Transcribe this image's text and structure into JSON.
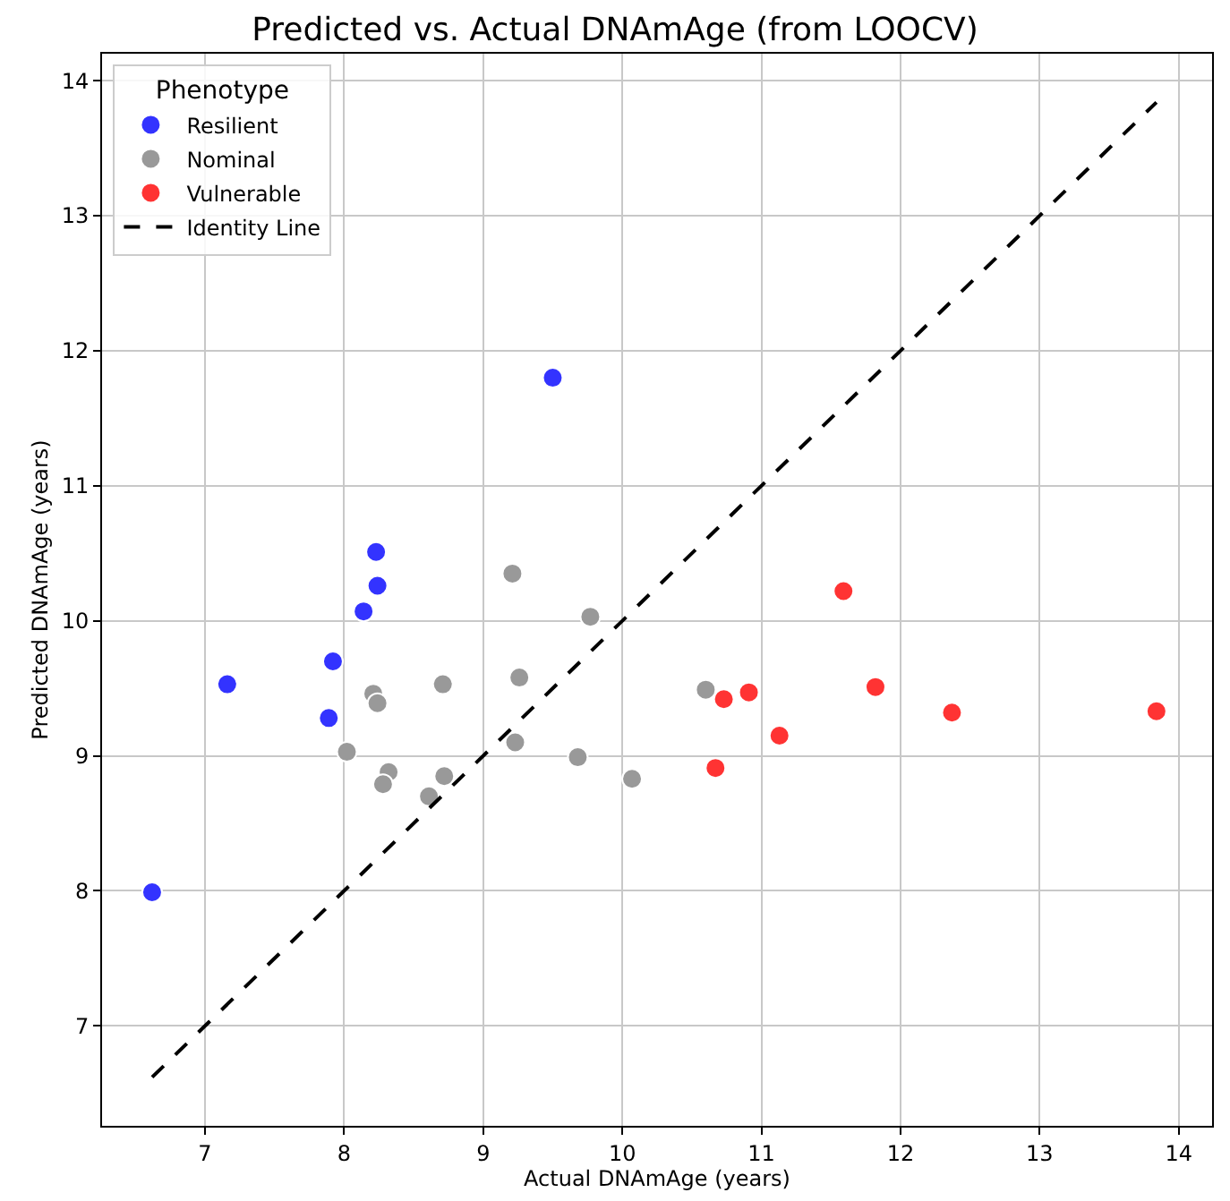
{
  "chart_data": {
    "type": "scatter",
    "title": "Predicted vs. Actual DNAmAge (from LOOCV)",
    "xlabel": "Actual DNAmAge (years)",
    "ylabel": "Predicted DNAmAge (years)",
    "legend_title": "Phenotype",
    "series": [
      {
        "name": "Resilient",
        "color": "#3333ff",
        "x": [
          6.62,
          7.16,
          7.92,
          7.89,
          8.14,
          8.24,
          8.23,
          9.5
        ],
        "values": [
          7.99,
          9.53,
          9.7,
          9.28,
          10.07,
          10.26,
          10.51,
          11.8
        ]
      },
      {
        "name": "Nominal",
        "color": "#999999",
        "x": [
          9.21,
          9.77,
          9.26,
          8.71,
          8.21,
          8.24,
          8.02,
          9.23,
          9.68,
          10.07,
          8.32,
          8.28,
          8.72,
          8.61,
          10.6
        ],
        "values": [
          10.35,
          10.03,
          9.58,
          9.53,
          9.46,
          9.39,
          9.03,
          9.1,
          8.99,
          8.83,
          8.88,
          8.79,
          8.85,
          8.7,
          9.49
        ]
      },
      {
        "name": "Vulnerable",
        "color": "#ff3333",
        "x": [
          10.73,
          10.91,
          11.13,
          10.67,
          11.59,
          11.82,
          12.37,
          13.84
        ],
        "values": [
          9.42,
          9.47,
          9.15,
          8.91,
          10.22,
          9.51,
          9.32,
          9.33
        ]
      },
      {
        "name": "Identity Line",
        "type": "line",
        "color": "#000000",
        "line_style": "dashed",
        "marker": "none",
        "x": [
          6.62,
          13.84
        ],
        "values": [
          6.62,
          13.84
        ]
      }
    ],
    "marker": "circle",
    "xlim": [
      6.26,
      14.24
    ],
    "ylim": [
      6.26,
      14.2
    ],
    "xticks": [
      7,
      8,
      9,
      10,
      11,
      12,
      13,
      14
    ],
    "yticks": [
      7,
      8,
      9,
      10,
      11,
      12,
      13,
      14
    ],
    "grid": true,
    "legend": "top left"
  }
}
